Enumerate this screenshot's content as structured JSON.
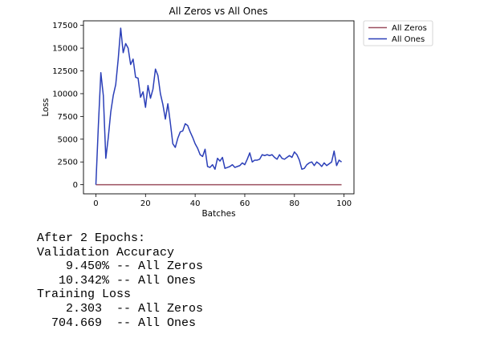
{
  "chart_data": {
    "type": "line",
    "title": "All Zeros vs All Ones",
    "xlabel": "Batches",
    "ylabel": "Loss",
    "xlim": [
      -5,
      104
    ],
    "ylim": [
      -1000,
      18000
    ],
    "xticks": [
      0,
      20,
      40,
      60,
      80,
      100
    ],
    "yticks": [
      0,
      2500,
      5000,
      7500,
      10000,
      12500,
      15000,
      17500
    ],
    "ytick_labels": [
      "0",
      "2500",
      "5000",
      "7500",
      "10000",
      "12500",
      "15000",
      "17500"
    ],
    "grid": false,
    "legend_position": "outside-top-right",
    "series": [
      {
        "name": "All Zeros",
        "color": "#9b4f5f",
        "x": [
          0,
          99
        ],
        "values": [
          2.3,
          2.3
        ]
      },
      {
        "name": "All Ones",
        "color": "#2b3fb8",
        "x": [
          0,
          1,
          2,
          3,
          4,
          5,
          6,
          7,
          8,
          9,
          10,
          11,
          12,
          13,
          14,
          15,
          16,
          17,
          18,
          19,
          20,
          21,
          22,
          23,
          24,
          25,
          26,
          27,
          28,
          29,
          30,
          31,
          32,
          33,
          34,
          35,
          36,
          37,
          38,
          39,
          40,
          41,
          42,
          43,
          44,
          45,
          46,
          47,
          48,
          49,
          50,
          51,
          52,
          53,
          54,
          55,
          56,
          57,
          58,
          59,
          60,
          61,
          62,
          63,
          64,
          65,
          66,
          67,
          68,
          69,
          70,
          71,
          72,
          73,
          74,
          75,
          76,
          77,
          78,
          79,
          80,
          81,
          82,
          83,
          84,
          85,
          86,
          87,
          88,
          89,
          90,
          91,
          92,
          93,
          94,
          95,
          96,
          97,
          98,
          99
        ],
        "values": [
          0,
          6500,
          12300,
          9800,
          2900,
          5200,
          8000,
          9800,
          11000,
          13800,
          17200,
          14500,
          15500,
          15000,
          13200,
          13800,
          11800,
          11700,
          9600,
          10200,
          8500,
          10900,
          9500,
          10500,
          12700,
          12000,
          10000,
          8800,
          7200,
          8900,
          6800,
          4500,
          4100,
          5100,
          5800,
          5900,
          6700,
          6500,
          5800,
          5200,
          4500,
          4000,
          3300,
          3100,
          3900,
          2000,
          1900,
          2200,
          1700,
          2900,
          2600,
          3000,
          1800,
          1900,
          2000,
          2200,
          1900,
          2000,
          2100,
          2400,
          2200,
          2800,
          3500,
          2500,
          2700,
          2700,
          2800,
          3300,
          3200,
          3300,
          3200,
          3300,
          3000,
          2800,
          3300,
          2900,
          2800,
          3000,
          3200,
          3000,
          3600,
          3300,
          2700,
          1700,
          1800,
          2200,
          2400,
          2500,
          2100,
          2500,
          2300,
          2000,
          2400,
          2100,
          2300,
          2500,
          3700,
          2100,
          2700,
          2500
        ]
      }
    ]
  },
  "output": {
    "lines": [
      "After 2 Epochs:",
      "Validation Accuracy",
      "    9.450% -- All Zeros",
      "   10.342% -- All Ones",
      "Training Loss",
      "    2.303  -- All Zeros",
      "  704.669  -- All Ones"
    ]
  }
}
